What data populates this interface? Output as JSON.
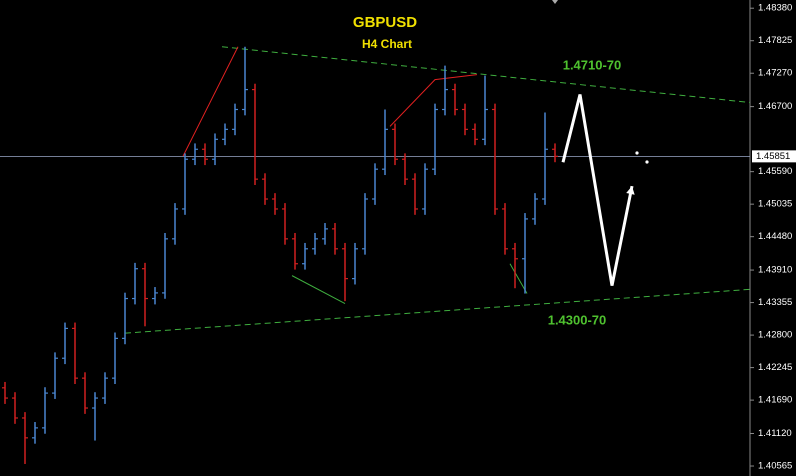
{
  "chart_data": {
    "type": "ohlc",
    "title": "GBPUSD",
    "subtitle": "H4 Chart",
    "up_color": "#4a86d0",
    "down_color": "#d02020",
    "xlim": [
      0,
      75
    ],
    "ylim": [
      1.4048,
      1.4852
    ],
    "yticks": [
      {
        "value": 1.4838,
        "label": "1.48380"
      },
      {
        "value": 1.47825,
        "label": "1.47825"
      },
      {
        "value": 1.4727,
        "label": "1.47270"
      },
      {
        "value": 1.467,
        "label": "1.46700"
      },
      {
        "value": 1.4559,
        "label": "1.45590"
      },
      {
        "value": 1.45035,
        "label": "1.45035"
      },
      {
        "value": 1.4448,
        "label": "1.44480"
      },
      {
        "value": 1.4391,
        "label": "1.43910"
      },
      {
        "value": 1.43355,
        "label": "1.43355"
      },
      {
        "value": 1.428,
        "label": "1.42800"
      },
      {
        "value": 1.42245,
        "label": "1.42245"
      },
      {
        "value": 1.4169,
        "label": "1.41690"
      },
      {
        "value": 1.4112,
        "label": "1.41120"
      },
      {
        "value": 1.40565,
        "label": "1.40565"
      }
    ],
    "current_price": {
      "value": 1.45851,
      "label": "1.45851"
    },
    "open": [
      1.419,
      1.41725,
      1.41385,
      1.41046,
      1.41216,
      1.4181,
      1.42405,
      1.42914,
      1.42065,
      1.41555,
      1.41725,
      1.42065,
      1.42744,
      1.43424,
      1.43933,
      1.43424,
      1.4352,
      1.44443,
      1.44953,
      1.45802,
      1.45972,
      1.45802,
      1.46142,
      1.46312,
      1.46651,
      1.46991,
      1.45462,
      1.45123,
      1.44953,
      1.44443,
      1.44018,
      1.44273,
      1.44443,
      1.44613,
      1.44273,
      1.43764,
      1.44273,
      1.45123,
      1.45632,
      1.46312,
      1.45802,
      1.45462,
      1.44953,
      1.45632,
      1.46651,
      1.46991,
      1.46651,
      1.46312,
      1.46142,
      1.46651,
      1.44953,
      1.44273,
      1.44103,
      1.44783,
      1.45123,
      1.45972
    ],
    "high": [
      1.42,
      1.41825,
      1.41485,
      1.41316,
      1.4191,
      1.42505,
      1.43014,
      1.43014,
      1.42165,
      1.41825,
      1.42165,
      1.42844,
      1.43524,
      1.44033,
      1.44033,
      1.4362,
      1.44543,
      1.45053,
      1.45902,
      1.46072,
      1.46072,
      1.46242,
      1.46412,
      1.46751,
      1.47722,
      1.47091,
      1.45562,
      1.45223,
      1.45053,
      1.44543,
      1.44373,
      1.44543,
      1.44713,
      1.44713,
      1.44373,
      1.44373,
      1.45223,
      1.45732,
      1.46651,
      1.46412,
      1.45902,
      1.45562,
      1.45732,
      1.46751,
      1.474,
      1.47091,
      1.46751,
      1.46412,
      1.4723,
      1.46751,
      1.45053,
      1.44373,
      1.44883,
      1.45223,
      1.466,
      1.46072
    ],
    "low": [
      1.41625,
      1.41285,
      1.406,
      1.40946,
      1.41116,
      1.4171,
      1.42305,
      1.41965,
      1.41455,
      1.41,
      1.41625,
      1.41965,
      1.42644,
      1.43324,
      1.4295,
      1.43324,
      1.4342,
      1.44343,
      1.44853,
      1.45702,
      1.45702,
      1.45702,
      1.46042,
      1.46212,
      1.46551,
      1.45362,
      1.45023,
      1.44853,
      1.44343,
      1.43918,
      1.43918,
      1.44173,
      1.44343,
      1.44173,
      1.4338,
      1.43664,
      1.44173,
      1.45023,
      1.45532,
      1.45702,
      1.45362,
      1.44853,
      1.44853,
      1.45532,
      1.46551,
      1.46551,
      1.46212,
      1.46042,
      1.46042,
      1.44853,
      1.44173,
      1.436,
      1.43509,
      1.44683,
      1.45023,
      1.45751
    ],
    "close": [
      1.41725,
      1.41385,
      1.41046,
      1.41216,
      1.4181,
      1.42405,
      1.42914,
      1.42065,
      1.41555,
      1.41725,
      1.42065,
      1.42744,
      1.43424,
      1.43933,
      1.43424,
      1.4352,
      1.44443,
      1.44953,
      1.45802,
      1.45972,
      1.45802,
      1.46142,
      1.46312,
      1.46651,
      1.46991,
      1.45462,
      1.45123,
      1.44953,
      1.44443,
      1.44018,
      1.44273,
      1.44443,
      1.44613,
      1.44273,
      1.43764,
      1.44273,
      1.45123,
      1.45632,
      1.46312,
      1.45802,
      1.45462,
      1.44953,
      1.45632,
      1.46651,
      1.46991,
      1.46651,
      1.46312,
      1.46142,
      1.46651,
      1.44953,
      1.44273,
      1.44103,
      1.44783,
      1.45123,
      1.45972,
      1.45851
    ],
    "lines": [
      {
        "x": [
          22.2,
          75
        ],
        "y": [
          1.47722,
          1.4677
        ],
        "color": "#3fae3f",
        "dashed": true
      },
      {
        "x": [
          12.5,
          75
        ],
        "y": [
          1.42833,
          1.43581
        ],
        "color": "#3fae3f",
        "dashed": true
      },
      {
        "x": [
          18.3,
          23.8
        ],
        "y": [
          1.45853,
          1.47722
        ],
        "color": "#e02020",
        "dashed": false
      },
      {
        "x": [
          39,
          43.5,
          47.7
        ],
        "y": [
          1.46363,
          1.47161,
          1.47246
        ],
        "color": "#e02020",
        "dashed": false
      },
      {
        "x": [
          29.2,
          34.5
        ],
        "y": [
          1.43815,
          1.43339
        ],
        "color": "#3fae3f",
        "dashed": false
      },
      {
        "x": [
          51,
          52.7
        ],
        "y": [
          1.44018,
          1.43509
        ],
        "color": "#3fae3f",
        "dashed": false
      }
    ],
    "forecast": {
      "x": [
        56.3,
        58,
        61.2,
        63.2
      ],
      "y": [
        1.45751,
        1.46906,
        1.43645,
        1.45343
      ],
      "color": "#ffffff"
    },
    "annotations": [
      "1.4710-70",
      "1.4300-70"
    ]
  }
}
